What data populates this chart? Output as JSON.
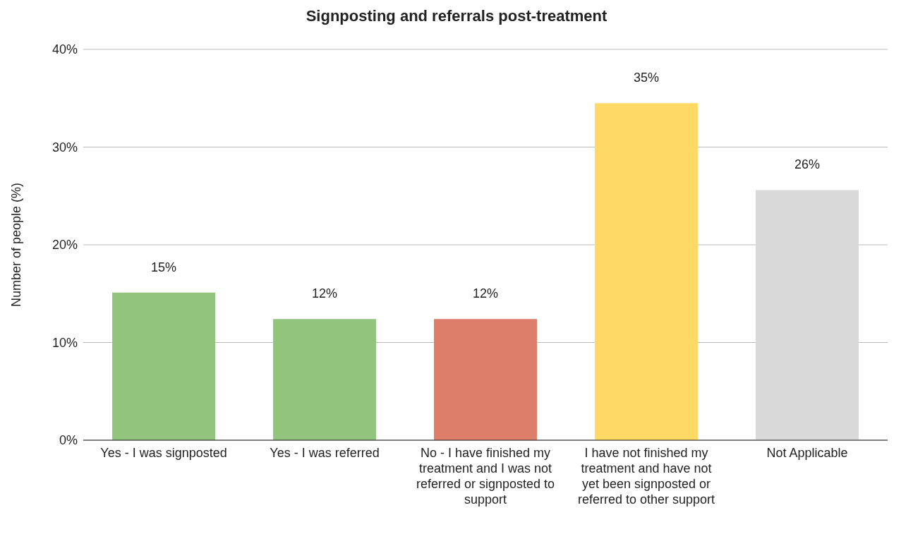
{
  "chart_data": {
    "type": "bar",
    "title": "Signposting and referrals post-treatment",
    "ylabel": "Number of people (%)",
    "categories": [
      "Yes - I was signposted",
      "Yes - I was referred",
      "No - I have finished my treatment and I was not referred or signposted to support",
      "I have not finished my treatment and have not yet been signposted or referred to other support",
      "Not Applicable"
    ],
    "values": [
      15.1,
      12.4,
      12.4,
      34.5,
      25.6
    ],
    "value_labels": [
      "15%",
      "12%",
      "12%",
      "35%",
      "26%"
    ],
    "colors": [
      "#93c47d",
      "#93c47d",
      "#dd7e6b",
      "#ffd966",
      "#d9d9d9"
    ],
    "ylim": [
      0,
      40
    ],
    "yticks": [
      {
        "value": 0,
        "label": "0%"
      },
      {
        "value": 10,
        "label": "10%"
      },
      {
        "value": 20,
        "label": "20%"
      },
      {
        "value": 30,
        "label": "30%"
      },
      {
        "value": 40,
        "label": "40%"
      }
    ],
    "grid": "y"
  }
}
